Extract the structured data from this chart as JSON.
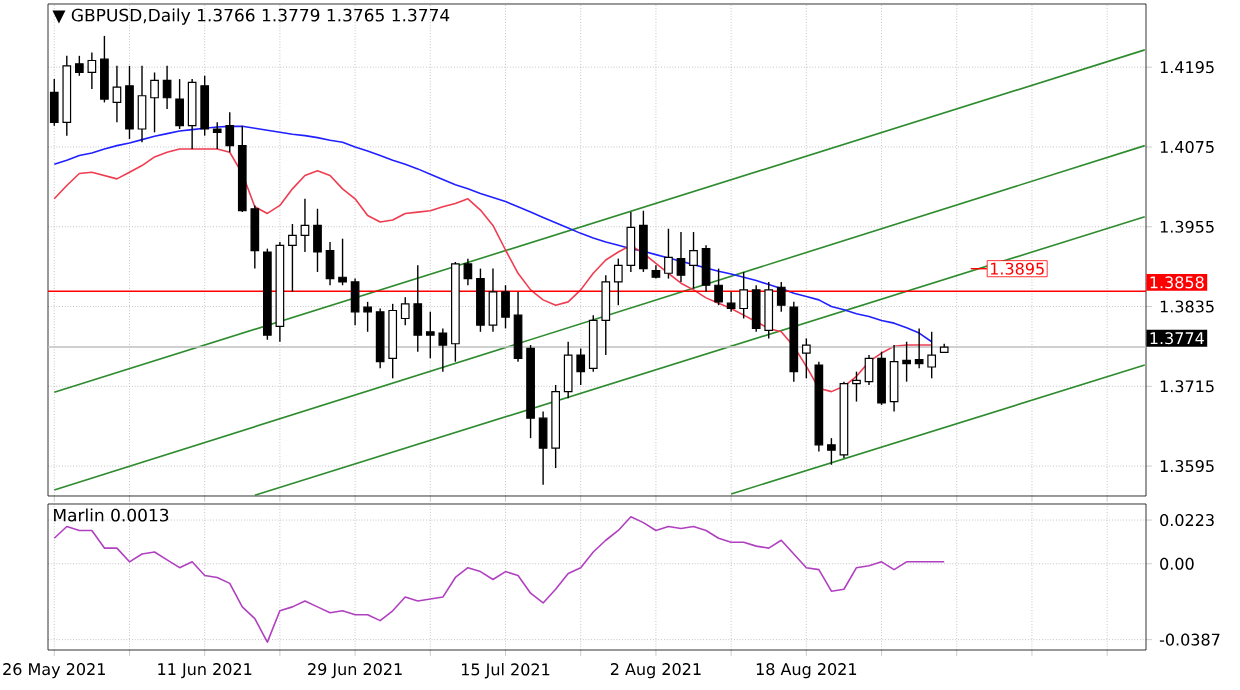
{
  "chart_data": [
    {
      "type": "candlestick",
      "title": "▼ GBPUSD,Daily  1.3766 1.3779 1.3765 1.3774",
      "categories": [
        null,
        null,
        null,
        null,
        null,
        null,
        null,
        null,
        null,
        null,
        null,
        null,
        null,
        null,
        null,
        null,
        null,
        null,
        null,
        null,
        null,
        null,
        null,
        null,
        null,
        null,
        null,
        null,
        null,
        null,
        null,
        null,
        null,
        null,
        null,
        null,
        null,
        null,
        null,
        null,
        null,
        null,
        null,
        null,
        null,
        null,
        null,
        null,
        null,
        null,
        null,
        null,
        null,
        null,
        null,
        null,
        null,
        null,
        null,
        null,
        null,
        null,
        null,
        null,
        null,
        null,
        null,
        null,
        null,
        null,
        null,
        null,
        null,
        null,
        null,
        null,
        null,
        null,
        null,
        null,
        null,
        null,
        null,
        null,
        null,
        null,
        null,
        null
      ],
      "ohlc": [
        [
          1.4157,
          1.4177,
          1.4107,
          1.4112
        ],
        [
          1.4112,
          1.4212,
          1.4092,
          1.4197
        ],
        [
          1.42,
          1.4212,
          1.4182,
          1.4187
        ],
        [
          1.4187,
          1.4217,
          1.4162,
          1.4205
        ],
        [
          1.4207,
          1.4242,
          1.4142,
          1.4147
        ],
        [
          1.4142,
          1.4197,
          1.4112,
          1.4165
        ],
        [
          1.4167,
          1.4197,
          1.4087,
          1.4102
        ],
        [
          1.4102,
          1.4197,
          1.4082,
          1.4152
        ],
        [
          1.4149,
          1.4187,
          1.4097,
          1.4175
        ],
        [
          1.4175,
          1.4197,
          1.4132,
          1.4149
        ],
        [
          1.4147,
          1.4177,
          1.4102,
          1.4107
        ],
        [
          1.4107,
          1.4177,
          1.4072,
          1.4172
        ],
        [
          1.4167,
          1.4182,
          1.4092,
          1.4102
        ],
        [
          1.4102,
          1.4112,
          1.4072,
          1.4097
        ],
        [
          1.4107,
          1.4127,
          1.4067,
          1.4077
        ],
        [
          1.4077,
          1.4107,
          1.3977,
          1.3979
        ],
        [
          1.3982,
          1.3987,
          1.3892,
          1.3919
        ],
        [
          1.3917,
          1.3922,
          1.3785,
          1.3792
        ],
        [
          1.3805,
          1.3932,
          1.3782,
          1.3927
        ],
        [
          1.3927,
          1.3959,
          1.3857,
          1.3942
        ],
        [
          1.3942,
          1.3997,
          1.3917,
          1.3957
        ],
        [
          1.3957,
          1.3982,
          1.3887,
          1.3917
        ],
        [
          1.3919,
          1.3932,
          1.3867,
          1.3877
        ],
        [
          1.3879,
          1.3937,
          1.3867,
          1.3872
        ],
        [
          1.3872,
          1.3877,
          1.3807,
          1.3827
        ],
        [
          1.3834,
          1.3842,
          1.3797,
          1.3827
        ],
        [
          1.3827,
          1.3832,
          1.3742,
          1.3752
        ],
        [
          1.3757,
          1.3839,
          1.3727,
          1.3829
        ],
        [
          1.3817,
          1.3849,
          1.3807,
          1.3839
        ],
        [
          1.3839,
          1.3897,
          1.3767,
          1.3792
        ],
        [
          1.3797,
          1.3827,
          1.3757,
          1.3792
        ],
        [
          1.3795,
          1.3802,
          1.3737,
          1.3777
        ],
        [
          1.3779,
          1.3902,
          1.3752,
          1.3899
        ],
        [
          1.3899,
          1.3907,
          1.3867,
          1.3877
        ],
        [
          1.3877,
          1.3892,
          1.3797,
          1.3807
        ],
        [
          1.3807,
          1.3892,
          1.3797,
          1.3857
        ],
        [
          1.3857,
          1.3867,
          1.3802,
          1.3819
        ],
        [
          1.3822,
          1.3857,
          1.3752,
          1.3757
        ],
        [
          1.3772,
          1.3777,
          1.3637,
          1.3667
        ],
        [
          1.3667,
          1.3677,
          1.3567,
          1.3622
        ],
        [
          1.3622,
          1.3717,
          1.3592,
          1.3707
        ],
        [
          1.3707,
          1.3782,
          1.3697,
          1.3762
        ],
        [
          1.3762,
          1.3772,
          1.3717,
          1.3737
        ],
        [
          1.3742,
          1.3822,
          1.3737,
          1.3814
        ],
        [
          1.3814,
          1.3882,
          1.3762,
          1.3872
        ],
        [
          1.3872,
          1.3907,
          1.3837,
          1.3897
        ],
        [
          1.3897,
          1.3977,
          1.3887,
          1.3954
        ],
        [
          1.3957,
          1.3979,
          1.3887,
          1.3892
        ],
        [
          1.3889,
          1.3897,
          1.3877,
          1.3879
        ],
        [
          1.3885,
          1.3952,
          1.3877,
          1.3909
        ],
        [
          1.3907,
          1.3947,
          1.3872,
          1.3882
        ],
        [
          1.3897,
          1.3947,
          1.3862,
          1.3919
        ],
        [
          1.3922,
          1.3927,
          1.3857,
          1.3867
        ],
        [
          1.3867,
          1.3892,
          1.3837,
          1.3842
        ],
        [
          1.384,
          1.3857,
          1.3827,
          1.3832
        ],
        [
          1.3832,
          1.3887,
          1.3817,
          1.386
        ],
        [
          1.386,
          1.3867,
          1.3797,
          1.3802
        ],
        [
          1.3799,
          1.3872,
          1.3787,
          1.386
        ],
        [
          1.3864,
          1.3872,
          1.3827,
          1.3837
        ],
        [
          1.3834,
          1.3842,
          1.3722,
          1.3737
        ],
        [
          1.3765,
          1.3787,
          1.3727,
          1.3777
        ],
        [
          1.3747,
          1.3752,
          1.3617,
          1.3627
        ],
        [
          1.3627,
          1.3637,
          1.3597,
          1.3619
        ],
        [
          1.3612,
          1.3722,
          1.3607,
          1.3719
        ],
        [
          1.3719,
          1.3737,
          1.3692,
          1.3724
        ],
        [
          1.3722,
          1.3762,
          1.3717,
          1.3757
        ],
        [
          1.3757,
          1.3767,
          1.3687,
          1.369
        ],
        [
          1.3692,
          1.3777,
          1.3677,
          1.3752
        ],
        [
          1.3754,
          1.3782,
          1.3722,
          1.3749
        ],
        [
          1.3755,
          1.3802,
          1.3742,
          1.3749
        ],
        [
          1.3744,
          1.3797,
          1.3727,
          1.3762
        ],
        [
          1.3766,
          1.3779,
          1.3765,
          1.3774
        ],
        null,
        null,
        null,
        null,
        null,
        null,
        null,
        null,
        null,
        null,
        null,
        null,
        null,
        null,
        null,
        null
      ],
      "series": [
        {
          "type": "line",
          "color": "#2e8b2e",
          "values": [
            1.3706,
            null,
            null,
            null,
            null,
            null,
            null,
            null,
            null,
            null,
            null,
            null,
            null,
            null,
            null,
            null,
            null,
            null,
            null,
            null,
            null,
            null,
            null,
            null,
            null,
            null,
            null,
            null,
            null,
            null,
            null,
            null,
            null,
            null,
            null,
            null,
            null,
            null,
            null,
            null,
            null,
            null,
            null,
            null,
            null,
            null,
            null,
            null,
            null,
            null,
            null,
            null,
            null,
            null,
            null,
            null,
            null,
            null,
            null,
            null,
            null,
            null,
            null,
            null,
            null,
            null,
            null,
            null,
            null,
            null,
            null,
            null,
            null,
            null,
            null,
            null,
            null,
            null,
            null,
            null,
            null,
            null,
            null,
            null,
            null,
            null,
            null,
            1.4221
          ]
        },
        {
          "type": "line",
          "color": "#2e8b2e",
          "values": [
            1.3559,
            null,
            null,
            null,
            null,
            null,
            null,
            null,
            null,
            null,
            null,
            null,
            null,
            null,
            null,
            null,
            null,
            null,
            null,
            null,
            null,
            null,
            null,
            null,
            null,
            null,
            null,
            null,
            null,
            null,
            null,
            null,
            null,
            null,
            null,
            null,
            null,
            null,
            null,
            null,
            null,
            null,
            null,
            null,
            null,
            null,
            null,
            null,
            null,
            null,
            null,
            null,
            null,
            null,
            null,
            null,
            null,
            null,
            null,
            null,
            null,
            null,
            null,
            null,
            null,
            null,
            null,
            null,
            null,
            null,
            null,
            null,
            null,
            null,
            null,
            null,
            null,
            null,
            null,
            null,
            null,
            null,
            null,
            null,
            null,
            null,
            null,
            1.4077
          ]
        },
        {
          "type": "line",
          "color": "#2e8b2e",
          "values": [
            null,
            null,
            null,
            null,
            null,
            null,
            null,
            null,
            null,
            null,
            null,
            null,
            null,
            null,
            null,
            null,
            1.3551,
            null,
            null,
            null,
            null,
            null,
            null,
            null,
            null,
            null,
            null,
            null,
            null,
            null,
            null,
            null,
            null,
            null,
            null,
            null,
            null,
            null,
            null,
            null,
            null,
            null,
            null,
            null,
            null,
            null,
            null,
            null,
            null,
            null,
            null,
            null,
            null,
            null,
            null,
            null,
            null,
            null,
            null,
            null,
            null,
            null,
            null,
            null,
            null,
            null,
            null,
            null,
            null,
            null,
            null,
            null,
            null,
            null,
            null,
            null,
            null,
            null,
            null,
            null,
            null,
            null,
            null,
            null,
            null,
            null,
            null,
            1.397
          ]
        },
        {
          "type": "line",
          "color": "#2e8b2e",
          "values": [
            null,
            null,
            null,
            null,
            null,
            null,
            null,
            null,
            null,
            null,
            null,
            null,
            null,
            null,
            null,
            null,
            null,
            null,
            null,
            null,
            null,
            null,
            null,
            null,
            null,
            null,
            null,
            null,
            null,
            null,
            null,
            null,
            null,
            null,
            null,
            null,
            null,
            null,
            null,
            null,
            null,
            null,
            null,
            null,
            null,
            null,
            null,
            null,
            null,
            null,
            null,
            null,
            null,
            null,
            1.3553,
            null,
            null,
            null,
            null,
            null,
            null,
            null,
            null,
            null,
            null,
            null,
            null,
            null,
            null,
            null,
            null,
            null,
            null,
            null,
            null,
            null,
            null,
            null,
            null,
            null,
            null,
            null,
            null,
            null,
            null,
            null,
            null,
            1.3747
          ]
        },
        {
          "type": "line",
          "color": "#2020ff",
          "values": [
            1.4049,
            1.4055,
            1.4062,
            1.4066,
            1.4072,
            1.4077,
            1.4081,
            1.4086,
            1.4091,
            1.4095,
            1.4099,
            1.4101,
            1.4103,
            1.4105,
            1.4106,
            1.4106,
            1.4103,
            1.41,
            1.4097,
            1.4094,
            1.4092,
            1.4089,
            1.4085,
            1.4082,
            1.4075,
            1.4069,
            1.4062,
            1.4055,
            1.4049,
            1.4042,
            1.4034,
            1.4026,
            1.4018,
            1.4012,
            1.4005,
            1.3999,
            1.3993,
            1.3985,
            1.3977,
            1.3969,
            1.3961,
            1.3953,
            1.3945,
            1.3938,
            1.3932,
            1.3927,
            1.3922,
            1.3918,
            1.3913,
            1.3908,
            1.3903,
            1.3898,
            1.3893,
            1.3888,
            1.3884,
            1.3879,
            1.3874,
            1.3868,
            1.3862,
            1.3855,
            1.385,
            1.3845,
            1.3835,
            1.383,
            1.3824,
            1.382,
            1.3814,
            1.381,
            1.3803,
            1.3795,
            1.3782,
            null,
            null,
            null,
            null,
            null,
            null,
            null,
            null,
            null,
            null,
            null,
            null,
            null,
            null,
            null,
            null,
            null
          ]
        },
        {
          "type": "line",
          "color": "#f03c50",
          "values": [
            1.3997,
            1.4017,
            1.4035,
            1.4037,
            1.4032,
            1.4027,
            1.4037,
            1.4047,
            1.406,
            1.4067,
            1.4072,
            1.4072,
            1.4072,
            1.4072,
            1.4067,
            1.4035,
            1.3985,
            1.3975,
            1.3987,
            1.4012,
            1.4032,
            1.4039,
            1.4032,
            1.4012,
            1.3997,
            1.3972,
            1.3962,
            1.3965,
            1.3975,
            1.3977,
            1.3979,
            1.3985,
            1.399,
            1.3997,
            1.398,
            1.3957,
            1.392,
            1.3885,
            1.386,
            1.3845,
            1.3837,
            1.3842,
            1.386,
            1.3885,
            1.3905,
            1.3917,
            1.3927,
            1.3915,
            1.39,
            1.3885,
            1.387,
            1.386,
            1.3848,
            1.384,
            1.3832,
            1.3822,
            1.3812,
            1.3802,
            1.3797,
            1.3775,
            1.3745,
            1.3712,
            1.3707,
            1.3715,
            1.373,
            1.3752,
            1.3765,
            1.3775,
            1.3777,
            1.3777,
            1.3777,
            null,
            null,
            null,
            null,
            null,
            null,
            null,
            null,
            null,
            null,
            null,
            null,
            null,
            null,
            null,
            null,
            null
          ]
        }
      ],
      "ylim": [
        1.355,
        1.429
      ],
      "yticks": [
        1.4195,
        1.4075,
        1.3955,
        1.3835,
        1.3715,
        1.3595
      ],
      "grid": true,
      "tick_labels": "y",
      "ref_lines": [
        {
          "axis": "y",
          "value": 1.3858,
          "label": "1.3858",
          "color": "#ff0000"
        },
        {
          "axis": "y",
          "value": 1.3774,
          "label": "1.3774",
          "color": "#c0c0c0"
        }
      ],
      "annotations": [
        "1.3895"
      ]
    },
    {
      "type": "line",
      "title": "Marlin 0.0013",
      "categories": [
        "26 May 2021",
        null,
        null,
        null,
        null,
        null,
        null,
        null,
        null,
        null,
        null,
        null,
        "11 Jun 2021",
        null,
        null,
        null,
        null,
        null,
        null,
        null,
        null,
        null,
        null,
        null,
        "29 Jun 2021",
        null,
        null,
        null,
        null,
        null,
        null,
        null,
        null,
        null,
        null,
        null,
        "15 Jul 2021",
        null,
        null,
        null,
        null,
        null,
        null,
        null,
        null,
        null,
        null,
        null,
        "2 Aug 2021",
        null,
        null,
        null,
        null,
        null,
        null,
        null,
        null,
        null,
        null,
        null,
        "18 Aug 2021",
        null,
        null,
        null,
        null,
        null,
        null,
        null,
        null,
        null,
        null,
        null,
        null,
        null,
        null,
        null,
        null,
        null,
        null,
        null,
        null,
        null,
        null,
        null,
        null,
        null,
        null,
        null
      ],
      "series": [
        {
          "color": "#b040c0",
          "values": [
            0.013,
            0.019,
            0.017,
            0.017,
            0.008,
            0.008,
            0.001,
            0.005,
            0.006,
            0.002,
            -0.002,
            0.001,
            -0.006,
            -0.007,
            -0.01,
            -0.022,
            -0.028,
            -0.04,
            -0.024,
            -0.022,
            -0.019,
            -0.022,
            -0.025,
            -0.024,
            -0.026,
            -0.026,
            -0.029,
            -0.024,
            -0.017,
            -0.019,
            -0.018,
            -0.017,
            -0.007,
            -0.002,
            -0.004,
            -0.008,
            -0.004,
            -0.006,
            -0.015,
            -0.02,
            -0.013,
            -0.005,
            -0.002,
            0.006,
            0.012,
            0.017,
            0.024,
            0.021,
            0.017,
            0.019,
            0.018,
            0.019,
            0.017,
            0.013,
            0.011,
            0.011,
            0.009,
            0.008,
            0.012,
            0.005,
            -0.002,
            -0.003,
            -0.014,
            -0.013,
            -0.002,
            -0.001,
            0.001,
            -0.003,
            0.001,
            0.001,
            0.001,
            0.001,
            null,
            null,
            null,
            null,
            null,
            null,
            null,
            null,
            null,
            null,
            null,
            null,
            null,
            null,
            null,
            null
          ]
        }
      ],
      "ylim": [
        -0.044,
        0.0305
      ],
      "yticks": [
        0.0223,
        {
          "value": 0,
          "label": "0.00"
        },
        -0.0387
      ],
      "grid": true
    }
  ]
}
